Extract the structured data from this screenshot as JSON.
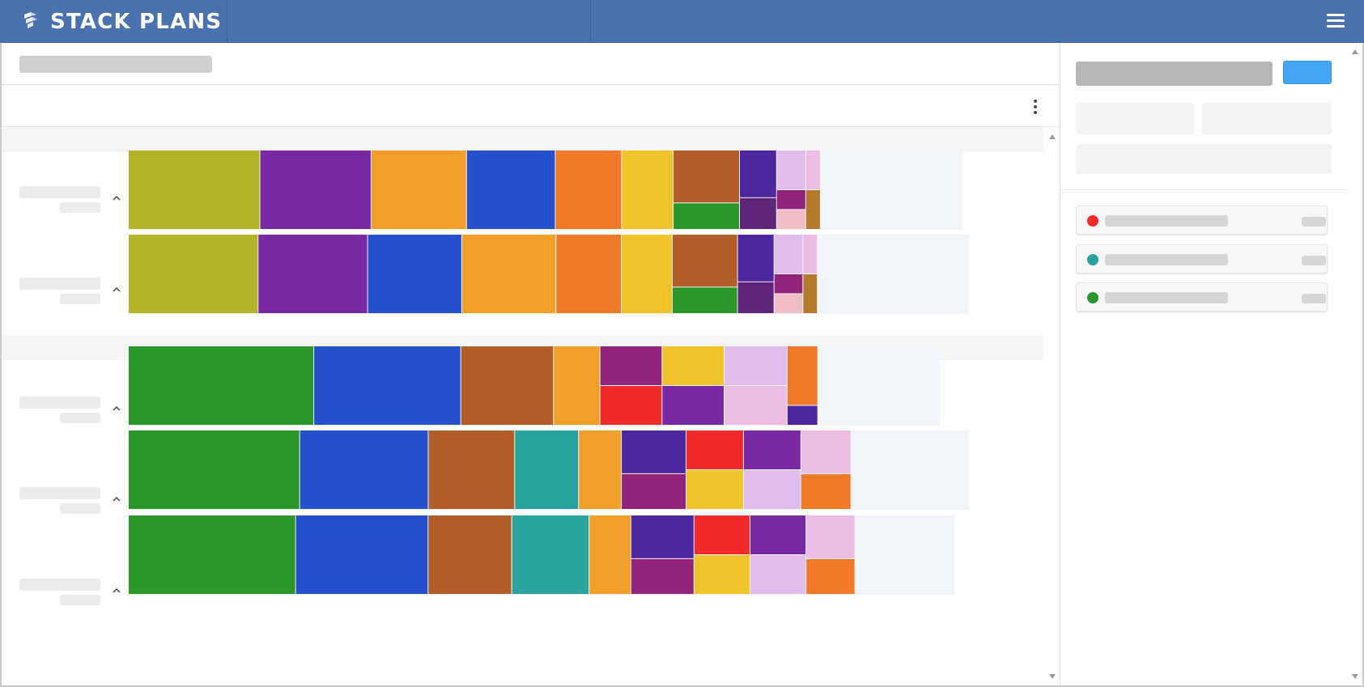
{
  "app": {
    "title": "STACK PLANS"
  },
  "legend": [
    {
      "color": "#ee2a2a",
      "icon": "status-dot"
    },
    {
      "color": "#28a3a0",
      "icon": "status-dot"
    },
    {
      "color": "#2a972a",
      "icon": "status-dot"
    }
  ],
  "colors": {
    "topbar": "#4a72ae",
    "primary_button": "#43a5f5"
  },
  "stack_rows": [
    {
      "group": 0,
      "fill": 0.83,
      "columns": [
        {
          "weight": 135,
          "blocks": [
            {
              "c": "#b4b42a",
              "w": 1
            }
          ]
        },
        {
          "weight": 114,
          "blocks": [
            {
              "c": "#7829a3",
              "w": 1
            }
          ]
        },
        {
          "weight": 98,
          "blocks": [
            {
              "c": "#f0a02a",
              "w": 1
            }
          ]
        },
        {
          "weight": 91,
          "blocks": [
            {
              "c": "#2751cc",
              "w": 1
            }
          ]
        },
        {
          "weight": 68,
          "blocks": [
            {
              "c": "#f07a2a",
              "w": 1
            }
          ]
        },
        {
          "weight": 53,
          "blocks": [
            {
              "c": "#eec42a",
              "w": 1
            }
          ]
        },
        {
          "weight": 68,
          "blocks": [
            {
              "c": "#b25d2a",
              "w": 2
            },
            {
              "c": "#2a972a",
              "w": 1
            }
          ]
        },
        {
          "weight": 38,
          "blocks": [
            {
              "c": "#4e27a0",
              "w": 3
            },
            {
              "c": "#5e2578",
              "w": 2
            }
          ]
        },
        {
          "weight": 30,
          "blocks": [
            {
              "c": "#e1bdee",
              "w": 2
            },
            {
              "c": "#92257a",
              "w": 1
            },
            {
              "c": "#edbcc4",
              "w": 1
            }
          ]
        },
        {
          "weight": 15,
          "blocks": [
            {
              "c": "#ecbce3",
              "w": 1
            },
            {
              "c": "#b27a2a",
              "w": 1
            }
          ]
        }
      ]
    },
    {
      "group": 0,
      "fill": 0.82,
      "columns": [
        {
          "weight": 135,
          "blocks": [
            {
              "c": "#b4b42a",
              "w": 1
            }
          ]
        },
        {
          "weight": 114,
          "blocks": [
            {
              "c": "#7829a3",
              "w": 1
            }
          ]
        },
        {
          "weight": 98,
          "blocks": [
            {
              "c": "#2751cc",
              "w": 1
            }
          ]
        },
        {
          "weight": 98,
          "blocks": [
            {
              "c": "#f0a02a",
              "w": 1
            }
          ]
        },
        {
          "weight": 68,
          "blocks": [
            {
              "c": "#f07a2a",
              "w": 1
            }
          ]
        },
        {
          "weight": 53,
          "blocks": [
            {
              "c": "#eec42a",
              "w": 1
            }
          ]
        },
        {
          "weight": 68,
          "blocks": [
            {
              "c": "#b25d2a",
              "w": 2
            },
            {
              "c": "#2a972a",
              "w": 1
            }
          ]
        },
        {
          "weight": 38,
          "blocks": [
            {
              "c": "#4e27a0",
              "w": 3
            },
            {
              "c": "#5e2578",
              "w": 2
            }
          ]
        },
        {
          "weight": 30,
          "blocks": [
            {
              "c": "#e1bdee",
              "w": 2
            },
            {
              "c": "#92257a",
              "w": 1
            },
            {
              "c": "#edbcc4",
              "w": 1
            }
          ]
        },
        {
          "weight": 15,
          "blocks": [
            {
              "c": "#ecbce3",
              "w": 1
            },
            {
              "c": "#b27a2a",
              "w": 1
            }
          ]
        }
      ]
    },
    {
      "group": 1,
      "fill": 0.85,
      "columns": [
        {
          "weight": 212,
          "blocks": [
            {
              "c": "#2a972a",
              "w": 1
            }
          ]
        },
        {
          "weight": 168,
          "blocks": [
            {
              "c": "#2751cc",
              "w": 1
            }
          ]
        },
        {
          "weight": 106,
          "blocks": [
            {
              "c": "#b25d2a",
              "w": 1
            }
          ]
        },
        {
          "weight": 53,
          "blocks": [
            {
              "c": "#f0a02a",
              "w": 1
            }
          ]
        },
        {
          "weight": 71,
          "blocks": [
            {
              "c": "#92257a",
              "w": 1
            },
            {
              "c": "#ee2a2a",
              "w": 1
            }
          ]
        },
        {
          "weight": 71,
          "blocks": [
            {
              "c": "#eec42a",
              "w": 1
            },
            {
              "c": "#7829a3",
              "w": 1
            }
          ]
        },
        {
          "weight": 72,
          "blocks": [
            {
              "c": "#e1bdee",
              "w": 1
            },
            {
              "c": "#ecbce3",
              "w": 1
            }
          ]
        },
        {
          "weight": 35,
          "blocks": [
            {
              "c": "#f07a2a",
              "w": 3
            },
            {
              "c": "#4e27a0",
              "w": 1
            }
          ]
        }
      ]
    },
    {
      "group": 1,
      "fill": 0.86,
      "columns": [
        {
          "weight": 212,
          "blocks": [
            {
              "c": "#2a972a",
              "w": 1
            }
          ]
        },
        {
          "weight": 159,
          "blocks": [
            {
              "c": "#2751cc",
              "w": 1
            }
          ]
        },
        {
          "weight": 107,
          "blocks": [
            {
              "c": "#b25d2a",
              "w": 1
            }
          ]
        },
        {
          "weight": 79,
          "blocks": [
            {
              "c": "#28a3a0",
              "w": 1
            }
          ]
        },
        {
          "weight": 53,
          "blocks": [
            {
              "c": "#f0a02a",
              "w": 1
            }
          ]
        },
        {
          "weight": 80,
          "blocks": [
            {
              "c": "#4e27a0",
              "w": 11
            },
            {
              "c": "#92257a",
              "w": 9
            }
          ]
        },
        {
          "weight": 71,
          "blocks": [
            {
              "c": "#ee2a2a",
              "w": 1
            },
            {
              "c": "#eec42a",
              "w": 1
            }
          ]
        },
        {
          "weight": 71,
          "blocks": [
            {
              "c": "#7829a3",
              "w": 1
            },
            {
              "c": "#e1bdee",
              "w": 1
            }
          ]
        },
        {
          "weight": 62,
          "blocks": [
            {
              "c": "#ecbce3",
              "w": 11
            },
            {
              "c": "#f07a2a",
              "w": 9
            }
          ]
        }
      ]
    },
    {
      "group": 1,
      "fill": 0.88,
      "columns": [
        {
          "weight": 212,
          "blocks": [
            {
              "c": "#2a972a",
              "w": 1
            }
          ]
        },
        {
          "weight": 168,
          "blocks": [
            {
              "c": "#2751cc",
              "w": 1
            }
          ]
        },
        {
          "weight": 106,
          "blocks": [
            {
              "c": "#b25d2a",
              "w": 1
            }
          ]
        },
        {
          "weight": 98,
          "blocks": [
            {
              "c": "#28a3a0",
              "w": 1
            }
          ]
        },
        {
          "weight": 53,
          "blocks": [
            {
              "c": "#f0a02a",
              "w": 1
            }
          ]
        },
        {
          "weight": 80,
          "blocks": [
            {
              "c": "#4e27a0",
              "w": 11
            },
            {
              "c": "#92257a",
              "w": 9
            }
          ]
        },
        {
          "weight": 71,
          "blocks": [
            {
              "c": "#ee2a2a",
              "w": 1
            },
            {
              "c": "#eec42a",
              "w": 1
            }
          ]
        },
        {
          "weight": 71,
          "blocks": [
            {
              "c": "#7829a3",
              "w": 1
            },
            {
              "c": "#e1bdee",
              "w": 1
            }
          ]
        },
        {
          "weight": 62,
          "blocks": [
            {
              "c": "#ecbce3",
              "w": 11
            },
            {
              "c": "#f07a2a",
              "w": 9
            }
          ]
        }
      ]
    }
  ]
}
